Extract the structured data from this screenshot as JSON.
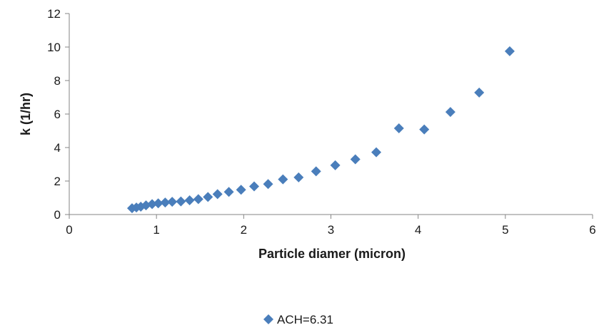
{
  "chart_data": {
    "type": "scatter",
    "title": "",
    "xlabel": "Particle diamer (micron)",
    "ylabel": "k (1/hr)",
    "xlim": [
      0,
      6
    ],
    "ylim": [
      0,
      12
    ],
    "x_ticks": [
      0,
      1,
      2,
      3,
      4,
      5,
      6
    ],
    "y_ticks": [
      0,
      2,
      4,
      6,
      8,
      10,
      12
    ],
    "x_tick_labels": [
      "0",
      "1",
      "2",
      "3",
      "4",
      "5",
      "6"
    ],
    "y_tick_labels": [
      "0",
      "2",
      "4",
      "6",
      "8",
      "10",
      "12"
    ],
    "grid": false,
    "legend_position": "bottom",
    "marker": "diamond",
    "series": [
      {
        "name": "ACH=6.31",
        "color": "#4a7ebb",
        "points": [
          {
            "x": 0.72,
            "y": 0.38
          },
          {
            "x": 0.77,
            "y": 0.42
          },
          {
            "x": 0.82,
            "y": 0.47
          },
          {
            "x": 0.88,
            "y": 0.55
          },
          {
            "x": 0.95,
            "y": 0.62
          },
          {
            "x": 1.02,
            "y": 0.67
          },
          {
            "x": 1.1,
            "y": 0.72
          },
          {
            "x": 1.18,
            "y": 0.76
          },
          {
            "x": 1.28,
            "y": 0.78
          },
          {
            "x": 1.38,
            "y": 0.85
          },
          {
            "x": 1.48,
            "y": 0.92
          },
          {
            "x": 1.59,
            "y": 1.05
          },
          {
            "x": 1.7,
            "y": 1.22
          },
          {
            "x": 1.83,
            "y": 1.35
          },
          {
            "x": 1.97,
            "y": 1.48
          },
          {
            "x": 2.12,
            "y": 1.68
          },
          {
            "x": 2.28,
            "y": 1.82
          },
          {
            "x": 2.45,
            "y": 2.1
          },
          {
            "x": 2.63,
            "y": 2.22
          },
          {
            "x": 2.83,
            "y": 2.58
          },
          {
            "x": 3.05,
            "y": 2.94
          },
          {
            "x": 3.28,
            "y": 3.3
          },
          {
            "x": 3.52,
            "y": 3.72
          },
          {
            "x": 3.78,
            "y": 5.15
          },
          {
            "x": 4.07,
            "y": 5.08
          },
          {
            "x": 4.37,
            "y": 6.12
          },
          {
            "x": 4.7,
            "y": 7.28
          },
          {
            "x": 5.05,
            "y": 9.75
          }
        ]
      }
    ]
  }
}
